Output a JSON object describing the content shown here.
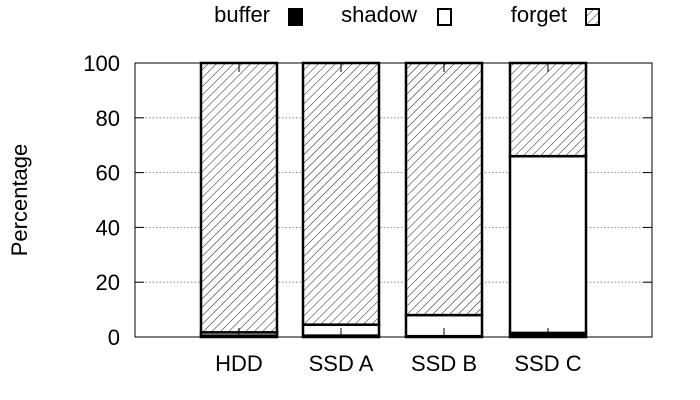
{
  "chart_data": {
    "type": "bar",
    "stacked": true,
    "title": "",
    "xlabel": "",
    "ylabel": "Percentage",
    "ylim": [
      0,
      100
    ],
    "yticks": [
      0,
      20,
      40,
      60,
      80,
      100
    ],
    "grid": "horizontal dotted",
    "legend_position": "top",
    "categories": [
      "HDD",
      "SSD A",
      "SSD B",
      "SSD C"
    ],
    "series": [
      {
        "name": "buffer",
        "values": [
          0.5,
          0.5,
          0.3,
          1.5
        ],
        "fill": "solid",
        "color": "#000000"
      },
      {
        "name": "shadow",
        "values": [
          1.2,
          4.0,
          7.7,
          64.5
        ],
        "fill": "empty",
        "color": "#ffffff"
      },
      {
        "name": "forget",
        "values": [
          98.3,
          95.5,
          92.0,
          34.0
        ],
        "fill": "hatch",
        "color": "#000000"
      }
    ]
  }
}
